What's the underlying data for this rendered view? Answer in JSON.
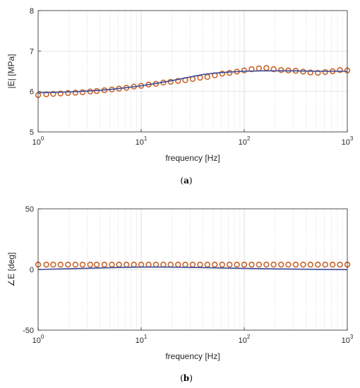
{
  "chart_data": [
    {
      "type": "scatter",
      "panel_label": "a",
      "xlabel": "frequency [Hz]",
      "ylabel": "|E| [MPa]",
      "x_scale": "log",
      "xlim": [
        1,
        1000
      ],
      "ylim": [
        5,
        8
      ],
      "x_ticks": [
        1,
        10,
        100,
        1000
      ],
      "x_tick_labels": [
        {
          "base": "10",
          "exp": "0"
        },
        {
          "base": "10",
          "exp": "1"
        },
        {
          "base": "10",
          "exp": "2"
        },
        {
          "base": "10",
          "exp": "3"
        }
      ],
      "y_ticks": [
        5,
        6,
        7,
        8
      ],
      "y_tick_labels": [
        "5",
        "6",
        "7",
        "8"
      ],
      "grid": true,
      "series": [
        {
          "kind": "markers",
          "marker": "circle",
          "color": "#c8642a",
          "x": [
            1.0,
            1.2,
            1.4,
            1.65,
            1.95,
            2.3,
            2.7,
            3.2,
            3.7,
            4.4,
            5.2,
            6.1,
            7.2,
            8.5,
            10.0,
            11.8,
            13.9,
            16.4,
            19.3,
            22.8,
            26.8,
            31.6,
            37.3,
            43.9,
            51.8,
            61.1,
            72.0,
            84.8,
            100,
            118,
            139,
            164,
            193,
            228,
            268,
            316,
            373,
            439,
            518,
            611,
            720,
            848,
            1000
          ],
          "y": [
            5.91,
            5.93,
            5.94,
            5.95,
            5.96,
            5.97,
            5.98,
            6.0,
            6.01,
            6.03,
            6.05,
            6.07,
            6.09,
            6.12,
            6.14,
            6.17,
            6.19,
            6.22,
            6.24,
            6.26,
            6.28,
            6.31,
            6.34,
            6.36,
            6.4,
            6.44,
            6.46,
            6.49,
            6.52,
            6.55,
            6.57,
            6.58,
            6.55,
            6.53,
            6.52,
            6.51,
            6.49,
            6.47,
            6.46,
            6.48,
            6.5,
            6.53,
            6.52
          ]
        },
        {
          "kind": "line",
          "color": "#3a4a9a",
          "x": [
            1,
            1.5,
            2,
            3,
            4,
            5,
            7,
            10,
            14,
            20,
            30,
            40,
            55,
            70,
            100,
            150,
            200,
            300,
            500,
            700,
            1000
          ],
          "y": [
            5.97,
            5.98,
            5.99,
            6.01,
            6.03,
            6.05,
            6.09,
            6.14,
            6.2,
            6.27,
            6.36,
            6.42,
            6.46,
            6.48,
            6.5,
            6.51,
            6.51,
            6.51,
            6.5,
            6.5,
            6.5
          ]
        }
      ]
    },
    {
      "type": "scatter",
      "panel_label": "b",
      "xlabel": "frequency [Hz]",
      "ylabel": "∠E [deg]",
      "x_scale": "log",
      "xlim": [
        1,
        1000
      ],
      "ylim": [
        -50,
        50
      ],
      "x_ticks": [
        1,
        10,
        100,
        1000
      ],
      "x_tick_labels": [
        {
          "base": "10",
          "exp": "0"
        },
        {
          "base": "10",
          "exp": "1"
        },
        {
          "base": "10",
          "exp": "2"
        },
        {
          "base": "10",
          "exp": "3"
        }
      ],
      "y_ticks": [
        -50,
        0,
        50
      ],
      "y_tick_labels": [
        "-50",
        "0",
        "50"
      ],
      "grid": true,
      "series": [
        {
          "kind": "markers",
          "marker": "circle",
          "color": "#c8642a",
          "x": [
            1.0,
            1.2,
            1.4,
            1.65,
            1.95,
            2.3,
            2.7,
            3.2,
            3.7,
            4.4,
            5.2,
            6.1,
            7.2,
            8.5,
            10.0,
            11.8,
            13.9,
            16.4,
            19.3,
            22.8,
            26.8,
            31.6,
            37.3,
            43.9,
            51.8,
            61.1,
            72.0,
            84.8,
            100,
            118,
            139,
            164,
            193,
            228,
            268,
            316,
            373,
            439,
            518,
            611,
            720,
            848,
            1000
          ],
          "y": [
            4,
            4,
            4,
            4,
            4,
            4,
            4,
            4,
            4,
            4,
            4,
            4,
            4,
            4,
            4,
            4,
            4,
            4,
            4,
            4,
            4,
            4,
            4,
            4,
            4,
            4,
            4,
            4,
            4,
            4,
            4,
            4,
            4,
            4,
            4,
            4,
            4,
            4,
            4,
            4,
            4,
            4,
            4
          ]
        },
        {
          "kind": "line",
          "color": "#3a4a9a",
          "x": [
            1,
            2,
            3,
            5,
            7,
            10,
            15,
            20,
            30,
            50,
            70,
            100,
            200,
            300,
            500,
            1000
          ],
          "y": [
            0,
            0.6,
            1.0,
            1.5,
            1.8,
            2.0,
            2.0,
            1.9,
            1.7,
            1.4,
            1.1,
            0.9,
            0.5,
            0.3,
            0.1,
            -0.1
          ]
        }
      ]
    }
  ],
  "captions": {
    "a": {
      "open": "(",
      "label": "a",
      "close": ")"
    },
    "b": {
      "open": "(",
      "label": "b",
      "close": ")"
    }
  }
}
